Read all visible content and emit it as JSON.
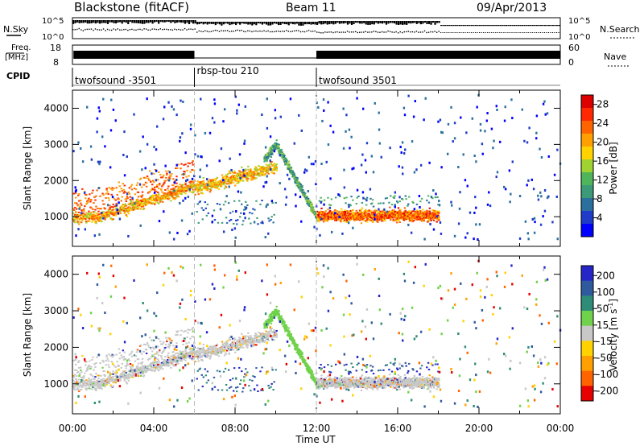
{
  "header": {
    "title": "Blackstone (fitACF)",
    "beam": "Beam 11",
    "date": "09/Apr/2013"
  },
  "top_panels": {
    "nsky_label": "N.Sky",
    "nsky_ticks": [
      "10^5",
      "10^0"
    ],
    "nsearch_label": "N.Search",
    "nsearch_ticks": [
      "10^5",
      "10^0"
    ],
    "freq_label": "Freq.",
    "freq_unit": "[MHz]",
    "freq_ticks": [
      "18",
      "8"
    ],
    "nave_label": "Nave",
    "nave_ticks": [
      "60",
      "0"
    ],
    "cpid_label": "CPID",
    "cpid_segments": [
      {
        "label": "twofsound -3501",
        "start_hr": 0,
        "end_hr": 6
      },
      {
        "label": "rbsp-tou 210",
        "start_hr": 6,
        "end_hr": 12
      },
      {
        "label": "twofsound 3501",
        "start_hr": 12,
        "end_hr": 24
      }
    ]
  },
  "colors": {
    "power": [
      "#0000ff",
      "#1e3cc8",
      "#2a6f9e",
      "#3c9a78",
      "#4fb45a",
      "#a0d232",
      "#ffd200",
      "#ffa000",
      "#ff6400",
      "#ff2800",
      "#dc0000"
    ],
    "velocity": [
      "#2626c8",
      "#2f5a9e",
      "#2f8c78",
      "#6fd24a",
      "#c8c8c8",
      "#ffd200",
      "#ffa000",
      "#ff6400",
      "#e60000"
    ]
  },
  "chart_data": [
    {
      "type": "heatmap",
      "name": "power-panel",
      "xlabel": "Time UT",
      "ylabel": "Slant Range [km]",
      "x_ticks": [
        "00:00",
        "04:00",
        "08:00",
        "12:00",
        "16:00",
        "20:00",
        "00:00"
      ],
      "xlim_hours": [
        0,
        24
      ],
      "ylim_km": [
        180,
        4500
      ],
      "y_ticks": [
        1000,
        2000,
        3000,
        4000
      ],
      "colorbar_label": "Power [dB]",
      "colorbar_ticks": [
        4,
        8,
        12,
        16,
        20,
        24,
        28
      ],
      "colorbar_range": [
        0,
        30
      ]
    },
    {
      "type": "heatmap",
      "name": "velocity-panel",
      "xlabel": "Time UT",
      "ylabel": "Slant Range [km]",
      "x_ticks": [
        "00:00",
        "04:00",
        "08:00",
        "12:00",
        "16:00",
        "20:00",
        "00:00"
      ],
      "xlim_hours": [
        0,
        24
      ],
      "ylim_km": [
        180,
        4500
      ],
      "y_ticks": [
        1000,
        2000,
        3000,
        4000
      ],
      "colorbar_label": "Velocity [m s-1]",
      "colorbar_ticks": [
        200,
        100,
        50,
        15,
        -15,
        -50,
        -100,
        -200
      ],
      "colorbar_unit_main": "Velocity [m s",
      "colorbar_unit_sup": "-1",
      "colorbar_unit_end": "]"
    }
  ]
}
